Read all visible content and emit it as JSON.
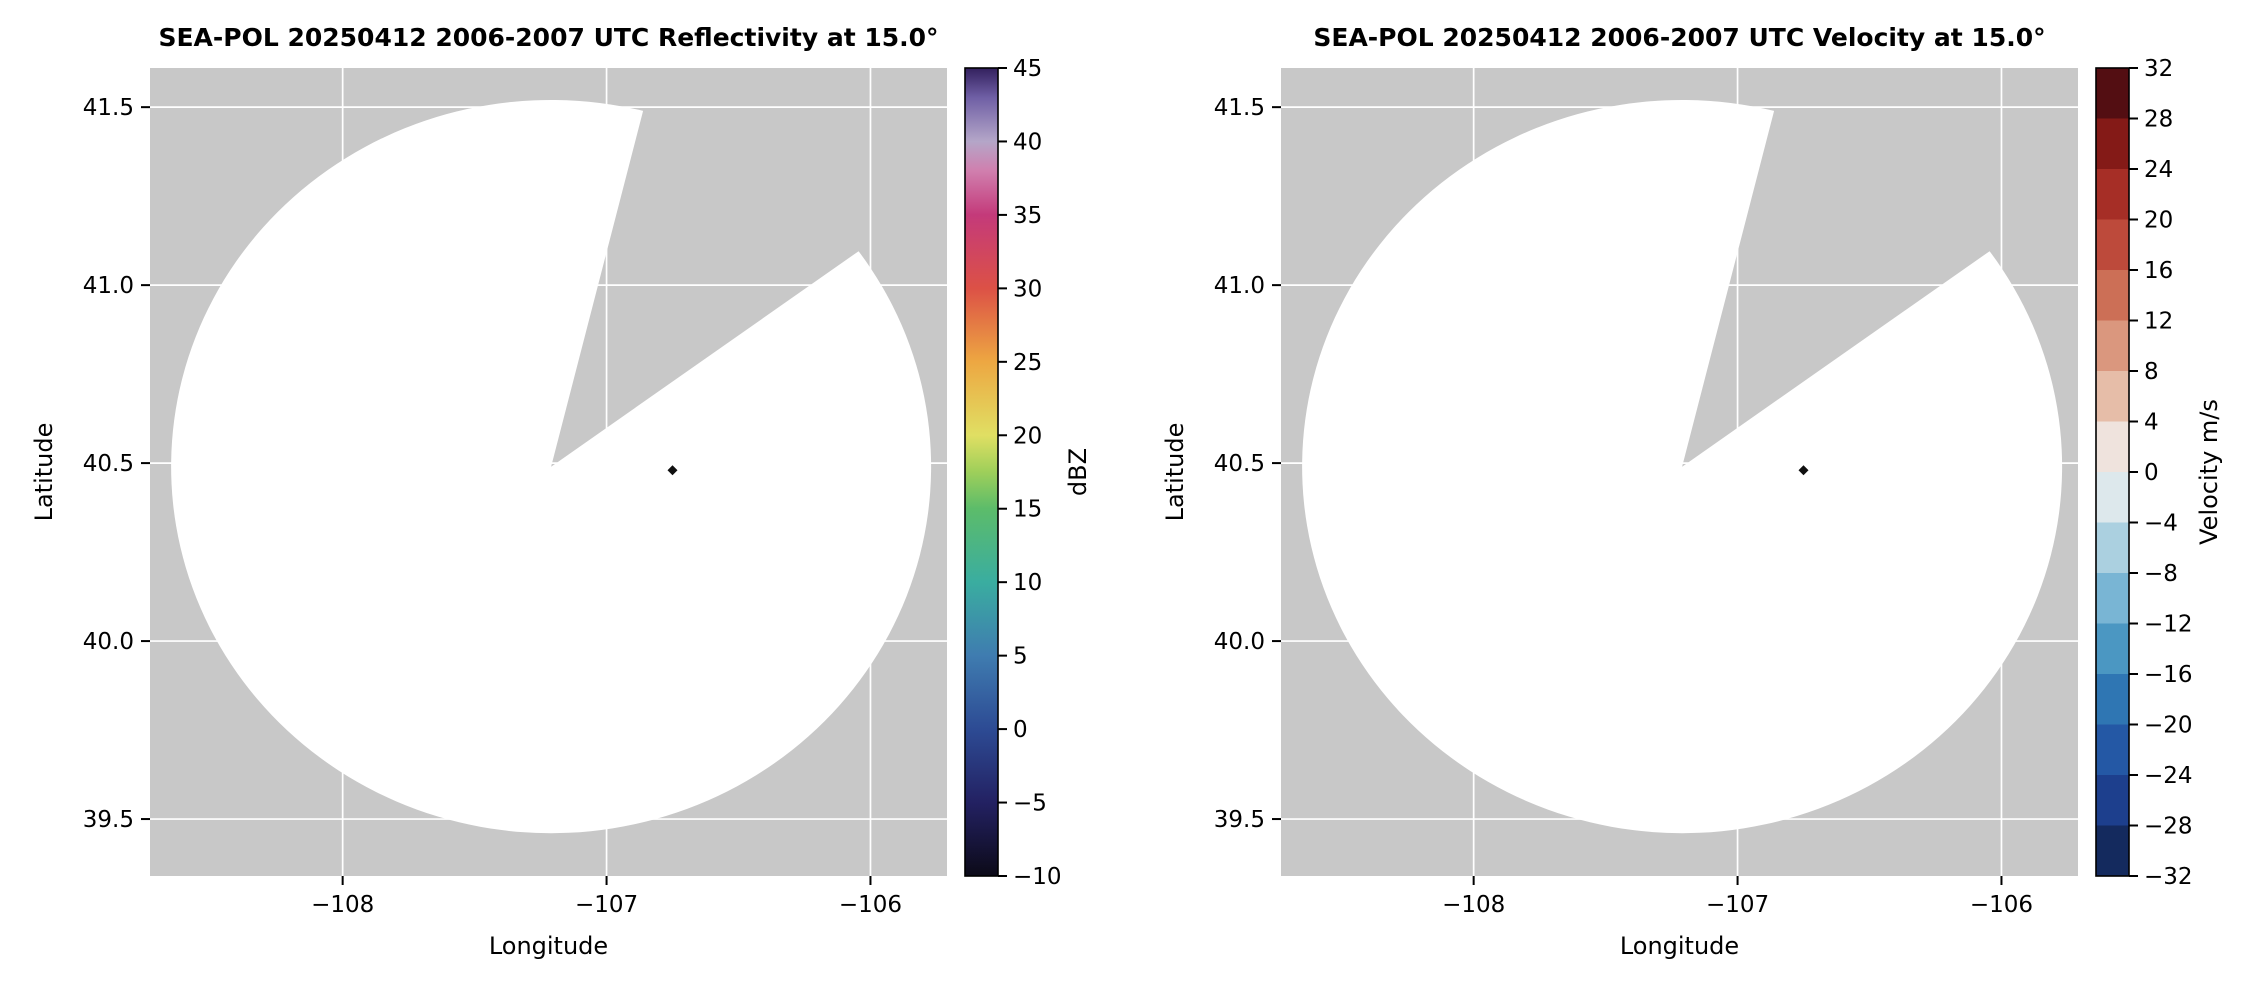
{
  "figure": {
    "background": "#ffffff",
    "plot_background": "#c8c8c8",
    "grid_color": "#ffffff",
    "text_color": "#000000"
  },
  "chart_data": [
    {
      "type": "heatmap",
      "id": "reflectivity",
      "title": "SEA-POL 20250412 2006-2007 UTC Reflectivity at 15.0°",
      "xlabel": "Longitude",
      "ylabel": "Latitude",
      "xlim": [
        -108.73,
        -105.71
      ],
      "ylim": [
        39.34,
        41.61
      ],
      "grid": true,
      "xticks": {
        "values": [
          -108,
          -107,
          -106
        ],
        "labels": [
          "−108",
          "−107",
          "−106"
        ]
      },
      "yticks": {
        "values": [
          39.5,
          40.0,
          40.5,
          41.0,
          41.5
        ],
        "labels": [
          "39.5",
          "40.0",
          "40.5",
          "41.0",
          "41.5"
        ]
      },
      "radar_coverage": {
        "center_lon": -107.21,
        "center_lat": 40.49,
        "radius_lon_deg": 1.44,
        "radius_lat_deg": 1.03,
        "missing_sector_azimuth_deg": [
          14,
          54
        ],
        "note": "scan area blank - no reflectivity echoes above color-scale minimum"
      },
      "echo_points": [
        {
          "lon": -106.75,
          "lat": 40.48
        }
      ],
      "colorbar": {
        "label": "dBZ",
        "min": -10,
        "max": 45,
        "tick_values": [
          -10,
          -5,
          0,
          5,
          10,
          15,
          20,
          25,
          30,
          35,
          40,
          45
        ],
        "tick_labels": [
          "−10",
          "−5",
          "0",
          "5",
          "10",
          "15",
          "20",
          "25",
          "30",
          "35",
          "40",
          "45"
        ],
        "gradient_stops": [
          {
            "value": -10,
            "color": "#0c0a18"
          },
          {
            "value": -5,
            "color": "#232162"
          },
          {
            "value": 0,
            "color": "#2d4b94"
          },
          {
            "value": 5,
            "color": "#3f7cb0"
          },
          {
            "value": 10,
            "color": "#3aada0"
          },
          {
            "value": 15,
            "color": "#5cbc6a"
          },
          {
            "value": 17.5,
            "color": "#9ecf5a"
          },
          {
            "value": 20,
            "color": "#e0df63"
          },
          {
            "value": 25,
            "color": "#eda742"
          },
          {
            "value": 30,
            "color": "#dc5146"
          },
          {
            "value": 35,
            "color": "#c43a7a"
          },
          {
            "value": 38,
            "color": "#d07fae"
          },
          {
            "value": 40,
            "color": "#b4a6c8"
          },
          {
            "value": 43,
            "color": "#6f5fa5"
          },
          {
            "value": 45,
            "color": "#33205e"
          }
        ]
      }
    },
    {
      "type": "heatmap",
      "id": "velocity",
      "title": "SEA-POL 20250412 2006-2007 UTC Velocity at 15.0°",
      "xlabel": "Longitude",
      "ylabel": "Latitude",
      "xlim": [
        -108.73,
        -105.71
      ],
      "ylim": [
        39.34,
        41.61
      ],
      "grid": true,
      "xticks": {
        "values": [
          -108,
          -107,
          -106
        ],
        "labels": [
          "−108",
          "−107",
          "−106"
        ]
      },
      "yticks": {
        "values": [
          39.5,
          40.0,
          40.5,
          41.0,
          41.5
        ],
        "labels": [
          "39.5",
          "40.0",
          "40.5",
          "41.0",
          "41.5"
        ]
      },
      "radar_coverage": {
        "center_lon": -107.21,
        "center_lat": 40.49,
        "radius_lon_deg": 1.44,
        "radius_lat_deg": 1.03,
        "missing_sector_azimuth_deg": [
          14,
          54
        ],
        "note": "scan area blank - no velocity echoes"
      },
      "echo_points": [
        {
          "lon": -106.75,
          "lat": 40.48
        }
      ],
      "colorbar": {
        "label": "Velocity m/s",
        "min": -32,
        "max": 32,
        "tick_values": [
          -32,
          -28,
          -24,
          -20,
          -16,
          -12,
          -8,
          -4,
          0,
          4,
          8,
          12,
          16,
          20,
          24,
          28,
          32
        ],
        "tick_labels": [
          "−32",
          "−28",
          "−24",
          "−20",
          "−16",
          "−12",
          "−8",
          "−4",
          "0",
          "4",
          "8",
          "12",
          "16",
          "20",
          "24",
          "28",
          "32"
        ],
        "blocks": [
          {
            "from": -32,
            "to": -28,
            "color": "#142a5e"
          },
          {
            "from": -28,
            "to": -24,
            "color": "#1d3f8d"
          },
          {
            "from": -24,
            "to": -20,
            "color": "#2458a5"
          },
          {
            "from": -20,
            "to": -16,
            "color": "#2f76b3"
          },
          {
            "from": -16,
            "to": -12,
            "color": "#4b97c2"
          },
          {
            "from": -12,
            "to": -8,
            "color": "#79b5d4"
          },
          {
            "from": -8,
            "to": -4,
            "color": "#abd0e0"
          },
          {
            "from": -4,
            "to": 0,
            "color": "#dde8ec"
          },
          {
            "from": 0,
            "to": 4,
            "color": "#efe3dd"
          },
          {
            "from": 4,
            "to": 8,
            "color": "#e6bda8"
          },
          {
            "from": 8,
            "to": 12,
            "color": "#da977e"
          },
          {
            "from": 12,
            "to": 16,
            "color": "#cc6f56"
          },
          {
            "from": 16,
            "to": 20,
            "color": "#bd4a3b"
          },
          {
            "from": 20,
            "to": 24,
            "color": "#a62e26"
          },
          {
            "from": 24,
            "to": 28,
            "color": "#841a17"
          },
          {
            "from": 28,
            "to": 32,
            "color": "#530e12"
          }
        ]
      }
    }
  ]
}
